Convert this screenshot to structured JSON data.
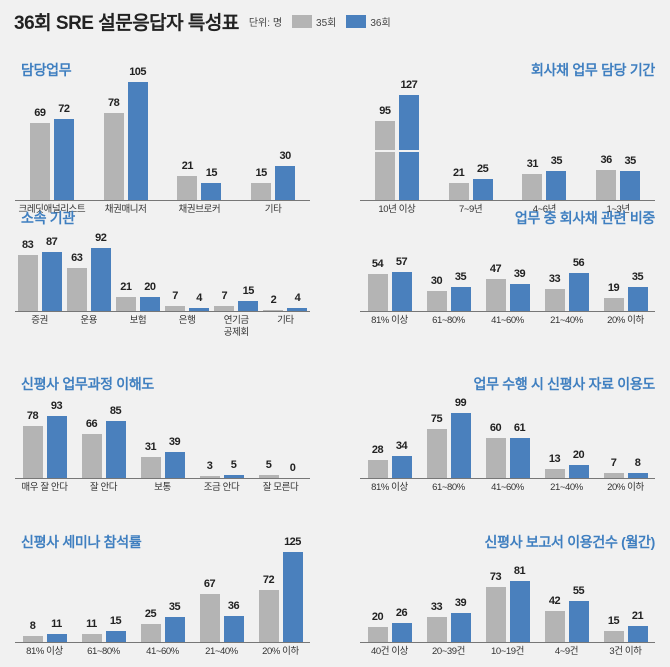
{
  "title": "36회 SRE 설문응답자 특성표",
  "unit": "단위: 명",
  "legend": [
    {
      "name": "35회",
      "color": "#b4b4b4"
    },
    {
      "name": "36회",
      "color": "#4a80bd"
    }
  ],
  "colors": {
    "series_35": "#b4b4b4",
    "series_36": "#4a80bd",
    "title": "#3f7fc0"
  },
  "chart_data": [
    {
      "type": "bar",
      "title": "담당업무",
      "categories": [
        "크레딧애널리스트",
        "채권매니저",
        "채권브로커",
        "기타"
      ],
      "series": [
        {
          "name": "35회",
          "values": [
            69,
            78,
            21,
            15
          ]
        },
        {
          "name": "36회",
          "values": [
            72,
            105,
            15,
            30
          ]
        }
      ]
    },
    {
      "type": "bar",
      "title": "회사채 업무 담당 기간",
      "categories": [
        "10년 이상",
        "7~9년",
        "4~6년",
        "1~3년"
      ],
      "axis_break": true,
      "series": [
        {
          "name": "35회",
          "values": [
            95,
            21,
            31,
            36
          ]
        },
        {
          "name": "36회",
          "values": [
            127,
            25,
            35,
            35
          ]
        }
      ]
    },
    {
      "type": "bar",
      "title": "소속 기관",
      "categories": [
        "증권",
        "운용",
        "보험",
        "은행",
        "연기금\n공제회",
        "기타"
      ],
      "series": [
        {
          "name": "35회",
          "values": [
            83,
            63,
            21,
            7,
            7,
            2
          ]
        },
        {
          "name": "36회",
          "values": [
            87,
            92,
            20,
            4,
            15,
            4
          ]
        }
      ]
    },
    {
      "type": "bar",
      "title": "업무 중 회사채 관련 비중",
      "categories": [
        "81% 이상",
        "61~80%",
        "41~60%",
        "21~40%",
        "20% 이하"
      ],
      "series": [
        {
          "name": "35회",
          "values": [
            54,
            30,
            47,
            33,
            19
          ]
        },
        {
          "name": "36회",
          "values": [
            57,
            35,
            39,
            56,
            35
          ]
        }
      ]
    },
    {
      "type": "bar",
      "title": "신평사 업무과정 이해도",
      "categories": [
        "매우 잘 안다",
        "잘 안다",
        "보통",
        "조금 안다",
        "잘 모른다"
      ],
      "series": [
        {
          "name": "35회",
          "values": [
            78,
            66,
            31,
            3,
            5
          ]
        },
        {
          "name": "36회",
          "values": [
            93,
            85,
            39,
            5,
            0
          ]
        }
      ]
    },
    {
      "type": "bar",
      "title": "업무 수행 시 신평사 자료 이용도",
      "categories": [
        "81% 이상",
        "61~80%",
        "41~60%",
        "21~40%",
        "20% 이하"
      ],
      "series": [
        {
          "name": "35회",
          "values": [
            28,
            75,
            60,
            13,
            7
          ]
        },
        {
          "name": "36회",
          "values": [
            34,
            99,
            61,
            20,
            8
          ]
        }
      ]
    },
    {
      "type": "bar",
      "title": "신평사 세미나 참석률",
      "categories": [
        "81% 이상",
        "61~80%",
        "41~60%",
        "21~40%",
        "20% 이하"
      ],
      "series": [
        {
          "name": "35회",
          "values": [
            8,
            11,
            25,
            67,
            72
          ]
        },
        {
          "name": "36회",
          "values": [
            11,
            15,
            35,
            36,
            125
          ]
        }
      ]
    },
    {
      "type": "bar",
      "title": "신평사 보고서 이용건수 (월간)",
      "categories": [
        "40건 이상",
        "20~39건",
        "10~19건",
        "4~9건",
        "3건 이하"
      ],
      "series": [
        {
          "name": "35회",
          "values": [
            20,
            33,
            73,
            42,
            15
          ]
        },
        {
          "name": "36회",
          "values": [
            26,
            39,
            81,
            55,
            21
          ]
        }
      ]
    }
  ]
}
